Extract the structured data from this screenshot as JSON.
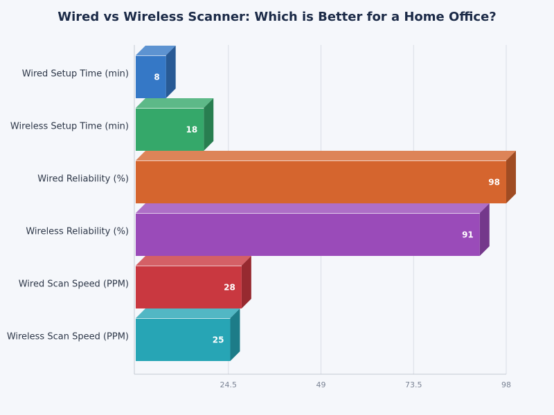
{
  "title": "Wired vs Wireless Scanner: Which is Better for a Home Office?",
  "chart_data": {
    "type": "bar",
    "orientation": "horizontal",
    "style": "3d",
    "title": "Wired vs Wireless Scanner: Which is Better for a Home Office?",
    "xlabel": "",
    "ylabel": "",
    "categories": [
      "Wired Setup Time (min)",
      "Wireless Setup Time (min)",
      "Wired Reliability (%)",
      "Wireless Reliability (%)",
      "Wired Scan Speed (PPM)",
      "Wireless Scan Speed (PPM)"
    ],
    "values": [
      8,
      18,
      98,
      91,
      28,
      25
    ],
    "colors": [
      "#3578c6",
      "#35a86a",
      "#d5652e",
      "#9a4bb9",
      "#c93840",
      "#27a5b5"
    ],
    "xlim": [
      0,
      98
    ],
    "xticks": [
      "24.5",
      "49",
      "73.5",
      "98"
    ],
    "grid": true,
    "legend": "none",
    "data_labels": true
  }
}
